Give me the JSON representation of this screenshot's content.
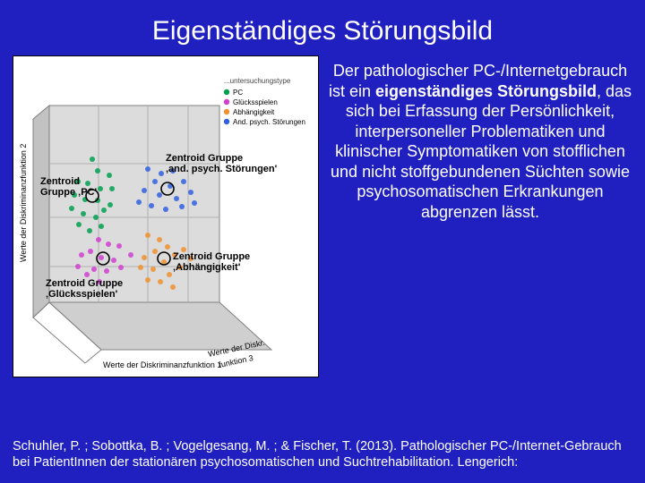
{
  "background_color": "#2020c0",
  "title": "Eigenständiges Störungsbild",
  "annotations": {
    "pc": {
      "l1": "Zentroid",
      "l2": "Gruppe ‚PC'"
    },
    "and": {
      "l1": "Zentroid Gruppe",
      "l2": "‚and. psych. Störungen'"
    },
    "gluck": {
      "l1": "Zentroid Gruppe",
      "l2": "‚Glücksspielen'"
    },
    "abh": {
      "l1": "Zentroid Gruppe",
      "l2": "‚Abhängigkeit'"
    }
  },
  "paragraph": {
    "pre": "Der pathologischer PC-/Internetgebrauch ist ein ",
    "bold": "eigenständiges Störungsbild",
    "post": ", das sich bei Erfassung der Persönlichkeit, interpersoneller Problematiken und klinischer Symptomatiken von stofflichen und nicht stoffgebundenen Süchten sowie psychosomatischen Erkrankungen abgrenzen lässt."
  },
  "citation": "Schuhler, P. ; Sobottka, B. ; Vogelgesang, M. ; & Fischer, T. (2013). Pathologischer PC-/Internet-Gebrauch bei PatientInnen der stationären psychosomatischen und Suchtrehabilitation. Lengerich:",
  "chart": {
    "legend_title": "...untersuchungstype",
    "legend": [
      {
        "label": "PC",
        "color": "#00a050"
      },
      {
        "label": "Glücksspielen",
        "color": "#d040d0"
      },
      {
        "label": "Abhängigkeit",
        "color": "#f09030"
      },
      {
        "label": "And. psych. Störungen",
        "color": "#3060e0"
      }
    ],
    "ylabel": "Werte der Diskriminanzfunktion 2",
    "xlabel1": "Werte der Diskriminanzfunktion 1",
    "xlabel2": "Werte der Diskr.",
    "xlabel3": "funktion 3",
    "planes": {
      "back_fill": "#dcdcdc",
      "floor_fill": "#cfcfcf",
      "side_fill": "#c2c2c2",
      "stroke": "#808080"
    },
    "centroid_ring": "#000000",
    "points": {
      "green": [
        [
          88,
          115
        ],
        [
          94,
          128
        ],
        [
          72,
          140
        ],
        [
          83,
          142
        ],
        [
          97,
          148
        ],
        [
          68,
          155
        ],
        [
          80,
          160
        ],
        [
          94,
          161
        ],
        [
          107,
          133
        ],
        [
          110,
          148
        ],
        [
          78,
          176
        ],
        [
          92,
          180
        ],
        [
          65,
          170
        ],
        [
          101,
          172
        ],
        [
          85,
          195
        ],
        [
          98,
          190
        ],
        [
          73,
          188
        ],
        [
          108,
          166
        ]
      ],
      "pink": [
        [
          95,
          205
        ],
        [
          106,
          210
        ],
        [
          86,
          218
        ],
        [
          118,
          212
        ],
        [
          98,
          225
        ],
        [
          76,
          222
        ],
        [
          112,
          228
        ],
        [
          90,
          238
        ],
        [
          104,
          240
        ],
        [
          82,
          244
        ],
        [
          120,
          236
        ],
        [
          96,
          252
        ],
        [
          72,
          235
        ],
        [
          131,
          222
        ]
      ],
      "orange": [
        [
          150,
          200
        ],
        [
          163,
          205
        ],
        [
          172,
          213
        ],
        [
          158,
          218
        ],
        [
          180,
          222
        ],
        [
          146,
          225
        ],
        [
          168,
          230
        ],
        [
          190,
          216
        ],
        [
          156,
          238
        ],
        [
          174,
          244
        ],
        [
          142,
          236
        ],
        [
          186,
          236
        ],
        [
          198,
          226
        ],
        [
          164,
          252
        ],
        [
          150,
          250
        ],
        [
          178,
          258
        ]
      ],
      "blue": [
        [
          150,
          126
        ],
        [
          165,
          131
        ],
        [
          178,
          128
        ],
        [
          158,
          140
        ],
        [
          175,
          145
        ],
        [
          190,
          140
        ],
        [
          146,
          150
        ],
        [
          163,
          155
        ],
        [
          182,
          159
        ],
        [
          198,
          152
        ],
        [
          154,
          167
        ],
        [
          170,
          171
        ],
        [
          188,
          168
        ],
        [
          140,
          163
        ],
        [
          202,
          164
        ]
      ]
    },
    "centroids": {
      "green": [
        88,
        156
      ],
      "pink": [
        100,
        226
      ],
      "orange": [
        168,
        226
      ],
      "blue": [
        172,
        148
      ]
    }
  }
}
